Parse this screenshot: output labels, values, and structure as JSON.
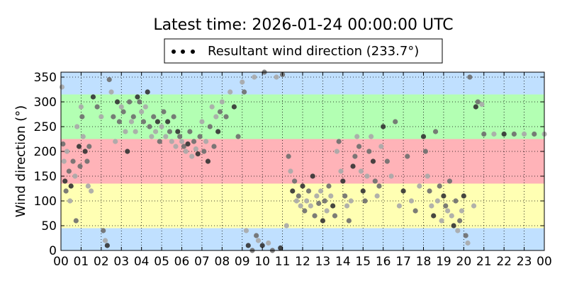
{
  "chart_data": {
    "type": "scatter",
    "title": "Latest time: 2026-01-24 00:00:00 UTC",
    "ylabel": "Wind direction (°)",
    "xlabel": "",
    "xlim": [
      0,
      24
    ],
    "ylim": [
      0,
      360
    ],
    "x_ticks": [
      "00",
      "01",
      "02",
      "03",
      "04",
      "05",
      "06",
      "07",
      "08",
      "09",
      "10",
      "11",
      "12",
      "13",
      "14",
      "15",
      "16",
      "17",
      "18",
      "19",
      "20",
      "21",
      "22",
      "23",
      "00"
    ],
    "y_ticks": [
      0,
      50,
      100,
      150,
      200,
      250,
      300,
      350
    ],
    "grid": true,
    "legend": {
      "placement": "top-center",
      "label": "Resultant wind direction (233.7°)"
    },
    "bands": [
      {
        "from": 0,
        "to": 45,
        "color": "#c0e0ff"
      },
      {
        "from": 45,
        "to": 135,
        "color": "#ffffb3"
      },
      {
        "from": 135,
        "to": 225,
        "color": "#ffb3b8"
      },
      {
        "from": 225,
        "to": 315,
        "color": "#b3ffb3"
      },
      {
        "from": 315,
        "to": 360,
        "color": "#c0e0ff"
      }
    ],
    "point_colors": {
      "dark": "#333333",
      "mid": "#6e6e6e",
      "light": "#a8a8a8"
    },
    "series": [
      {
        "values": [
          [
            0.05,
            330
          ],
          [
            0.1,
            215
          ],
          [
            0.15,
            180
          ],
          [
            0.2,
            140
          ],
          [
            0.25,
            120
          ],
          [
            0.3,
            200
          ],
          [
            0.4,
            160
          ],
          [
            0.45,
            100
          ],
          [
            0.5,
            130
          ],
          [
            0.6,
            180
          ],
          [
            0.7,
            150
          ],
          [
            0.75,
            60
          ],
          [
            0.8,
            250
          ],
          [
            0.9,
            210
          ],
          [
            0.95,
            170
          ],
          [
            1.0,
            290
          ],
          [
            1.05,
            270
          ],
          [
            1.1,
            230
          ],
          [
            1.2,
            200
          ],
          [
            1.3,
            180
          ],
          [
            1.35,
            130
          ],
          [
            1.4,
            210
          ],
          [
            1.5,
            120
          ],
          [
            1.6,
            310
          ],
          [
            1.8,
            290
          ],
          [
            2.0,
            270
          ],
          [
            2.1,
            40
          ],
          [
            2.2,
            20
          ],
          [
            2.3,
            10
          ],
          [
            2.4,
            345
          ],
          [
            2.5,
            320
          ],
          [
            2.6,
            270
          ],
          [
            2.7,
            220
          ],
          [
            2.8,
            300
          ],
          [
            2.9,
            260
          ],
          [
            3.0,
            290
          ],
          [
            3.1,
            280
          ],
          [
            3.2,
            240
          ],
          [
            3.3,
            200
          ],
          [
            3.4,
            300
          ],
          [
            3.5,
            260
          ],
          [
            3.6,
            270
          ],
          [
            3.7,
            240
          ],
          [
            3.8,
            310
          ],
          [
            3.9,
            300
          ],
          [
            4.0,
            280
          ],
          [
            4.1,
            260
          ],
          [
            4.2,
            290
          ],
          [
            4.3,
            320
          ],
          [
            4.4,
            250
          ],
          [
            4.5,
            230
          ],
          [
            4.6,
            270
          ],
          [
            4.7,
            240
          ],
          [
            4.8,
            260
          ],
          [
            4.9,
            220
          ],
          [
            5.0,
            250
          ],
          [
            5.1,
            280
          ],
          [
            5.2,
            230
          ],
          [
            5.3,
            260
          ],
          [
            5.4,
            240
          ],
          [
            5.5,
            220
          ],
          [
            5.6,
            270
          ],
          [
            5.7,
            210
          ],
          [
            5.8,
            240
          ],
          [
            5.9,
            230
          ],
          [
            6.0,
            220
          ],
          [
            6.1,
            210
          ],
          [
            6.2,
            200
          ],
          [
            6.3,
            215
          ],
          [
            6.4,
            240
          ],
          [
            6.5,
            190
          ],
          [
            6.6,
            220
          ],
          [
            6.7,
            205
          ],
          [
            6.8,
            195
          ],
          [
            6.9,
            230
          ],
          [
            7.0,
            260
          ],
          [
            7.1,
            200
          ],
          [
            7.2,
            220
          ],
          [
            7.3,
            180
          ],
          [
            7.4,
            250
          ],
          [
            7.5,
            290
          ],
          [
            7.6,
            210
          ],
          [
            7.7,
            270
          ],
          [
            7.8,
            240
          ],
          [
            7.9,
            280
          ],
          [
            8.0,
            300
          ],
          [
            8.2,
            270
          ],
          [
            8.4,
            320
          ],
          [
            8.6,
            290
          ],
          [
            8.8,
            230
          ],
          [
            9.0,
            340
          ],
          [
            9.1,
            320
          ],
          [
            9.2,
            40
          ],
          [
            9.3,
            10
          ],
          [
            9.5,
            0
          ],
          [
            9.6,
            350
          ],
          [
            9.7,
            30
          ],
          [
            9.8,
            20
          ],
          [
            10.0,
            10
          ],
          [
            10.1,
            360
          ],
          [
            10.3,
            15
          ],
          [
            10.5,
            0
          ],
          [
            10.7,
            350
          ],
          [
            10.9,
            5
          ],
          [
            11.0,
            355
          ],
          [
            11.2,
            50
          ],
          [
            11.3,
            190
          ],
          [
            11.4,
            160
          ],
          [
            11.5,
            120
          ],
          [
            11.6,
            140
          ],
          [
            11.7,
            100
          ],
          [
            11.8,
            110
          ],
          [
            11.9,
            90
          ],
          [
            12.0,
            130
          ],
          [
            12.1,
            80
          ],
          [
            12.2,
            100
          ],
          [
            12.3,
            120
          ],
          [
            12.4,
            90
          ],
          [
            12.5,
            150
          ],
          [
            12.6,
            70
          ],
          [
            12.7,
            110
          ],
          [
            12.8,
            95
          ],
          [
            12.9,
            120
          ],
          [
            13.0,
            60
          ],
          [
            13.1,
            100
          ],
          [
            13.2,
            80
          ],
          [
            13.3,
            130
          ],
          [
            13.4,
            110
          ],
          [
            13.5,
            90
          ],
          [
            13.6,
            70
          ],
          [
            13.7,
            200
          ],
          [
            13.8,
            220
          ],
          [
            13.9,
            160
          ],
          [
            14.0,
            140
          ],
          [
            14.1,
            110
          ],
          [
            14.2,
            90
          ],
          [
            14.3,
            60
          ],
          [
            14.4,
            100
          ],
          [
            14.5,
            170
          ],
          [
            14.6,
            190
          ],
          [
            14.7,
            230
          ],
          [
            14.8,
            210
          ],
          [
            14.9,
            160
          ],
          [
            15.0,
            120
          ],
          [
            15.1,
            100
          ],
          [
            15.2,
            150
          ],
          [
            15.3,
            200
          ],
          [
            15.4,
            230
          ],
          [
            15.5,
            180
          ],
          [
            15.6,
            140
          ],
          [
            15.7,
            110
          ],
          [
            15.8,
            130
          ],
          [
            15.9,
            210
          ],
          [
            16.0,
            250
          ],
          [
            16.2,
            180
          ],
          [
            16.4,
            150
          ],
          [
            16.6,
            260
          ],
          [
            16.8,
            90
          ],
          [
            17.0,
            120
          ],
          [
            17.2,
            190
          ],
          [
            17.4,
            100
          ],
          [
            17.6,
            80
          ],
          [
            17.8,
            130
          ],
          [
            18.0,
            230
          ],
          [
            18.1,
            200
          ],
          [
            18.2,
            150
          ],
          [
            18.3,
            120
          ],
          [
            18.4,
            90
          ],
          [
            18.5,
            70
          ],
          [
            18.6,
            240
          ],
          [
            18.7,
            100
          ],
          [
            18.8,
            130
          ],
          [
            18.9,
            60
          ],
          [
            19.0,
            110
          ],
          [
            19.1,
            90
          ],
          [
            19.2,
            80
          ],
          [
            19.3,
            140
          ],
          [
            19.4,
            70
          ],
          [
            19.5,
            50
          ],
          [
            19.6,
            100
          ],
          [
            19.7,
            40
          ],
          [
            19.8,
            60
          ],
          [
            19.9,
            80
          ],
          [
            20.0,
            110
          ],
          [
            20.1,
            30
          ],
          [
            20.2,
            15
          ],
          [
            20.3,
            350
          ],
          [
            20.5,
            90
          ],
          [
            20.6,
            290
          ],
          [
            20.7,
            300
          ],
          [
            20.9,
            295
          ],
          [
            21.0,
            235
          ],
          [
            21.5,
            235
          ],
          [
            22.0,
            235
          ],
          [
            22.5,
            235
          ],
          [
            23.0,
            235
          ],
          [
            23.5,
            235
          ],
          [
            24.0,
            235
          ]
        ]
      }
    ]
  }
}
